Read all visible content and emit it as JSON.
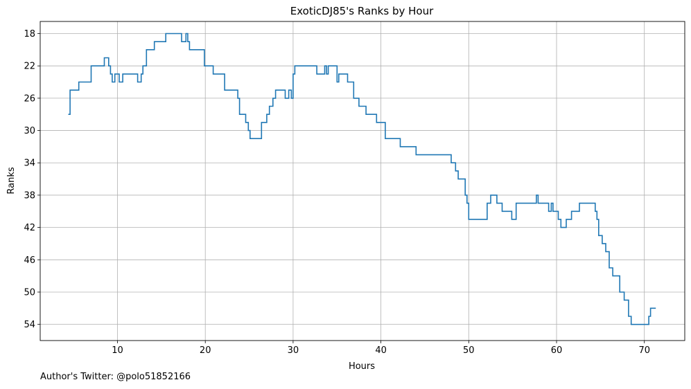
{
  "chart_data": {
    "type": "line",
    "title": "ExoticDJ85's Ranks by Hour",
    "xlabel": "Hours",
    "ylabel": "Ranks",
    "xlim": [
      1.2,
      74.6
    ],
    "ylim": [
      56.0,
      16.5
    ],
    "y_inverted": true,
    "grid": true,
    "line_style": "step-post",
    "series_color": "#1f77b4",
    "x_ticks": [
      10,
      20,
      30,
      40,
      50,
      60,
      70
    ],
    "y_ticks": [
      18,
      22,
      26,
      30,
      34,
      38,
      42,
      46,
      50,
      54
    ],
    "series": [
      {
        "x": [
          4.4,
          4.6,
          5.3,
          5.6,
          7.0,
          8.5,
          8.8,
          9.0,
          9.2,
          9.4,
          9.7,
          10.2,
          10.6,
          12.3,
          12.7,
          12.9,
          13.3,
          14.2,
          15.5,
          17.3,
          17.8,
          18.0,
          18.2,
          19.9,
          20.9,
          22.2,
          23.7,
          23.9,
          24.6,
          24.9,
          25.1,
          26.4,
          27.0,
          27.3,
          27.7,
          28.0,
          29.1,
          29.5,
          29.8,
          30.0,
          30.2,
          32.7,
          33.6,
          33.8,
          34.0,
          35.0,
          35.2,
          36.2,
          36.9,
          37.5,
          38.3,
          39.5,
          40.5,
          42.2,
          44.0,
          48.0,
          48.5,
          48.8,
          49.6,
          49.8,
          50.0,
          52.1,
          52.5,
          53.2,
          53.8,
          54.9,
          55.4,
          57.7,
          57.9,
          59.1,
          59.4,
          59.6,
          60.2,
          60.5,
          61.1,
          61.7,
          62.6,
          64.4,
          64.6,
          64.8,
          65.2,
          65.6,
          66.0,
          66.4,
          67.2,
          67.7,
          68.2,
          68.5,
          70.5,
          70.7,
          70.9,
          71.3
        ],
        "y": [
          28,
          25,
          25,
          24,
          22,
          21,
          21,
          22,
          23,
          24,
          23,
          24,
          23,
          24,
          23,
          22,
          20,
          19,
          18,
          19,
          18,
          19,
          20,
          22,
          23,
          25,
          26,
          28,
          29,
          30,
          31,
          29,
          28,
          27,
          26,
          25,
          26,
          25,
          26,
          23,
          22,
          23,
          22,
          23,
          22,
          24,
          23,
          24,
          26,
          27,
          28,
          29,
          31,
          32,
          33,
          34,
          35,
          36,
          38,
          39,
          41,
          39,
          38,
          39,
          40,
          41,
          39,
          38,
          39,
          40,
          39,
          40,
          41,
          42,
          41,
          40,
          39,
          40,
          41,
          43,
          44,
          45,
          47,
          48,
          50,
          51,
          53,
          54,
          53,
          52,
          52,
          52
        ]
      }
    ]
  },
  "footnote": "Author's Twitter: @polo51852166"
}
